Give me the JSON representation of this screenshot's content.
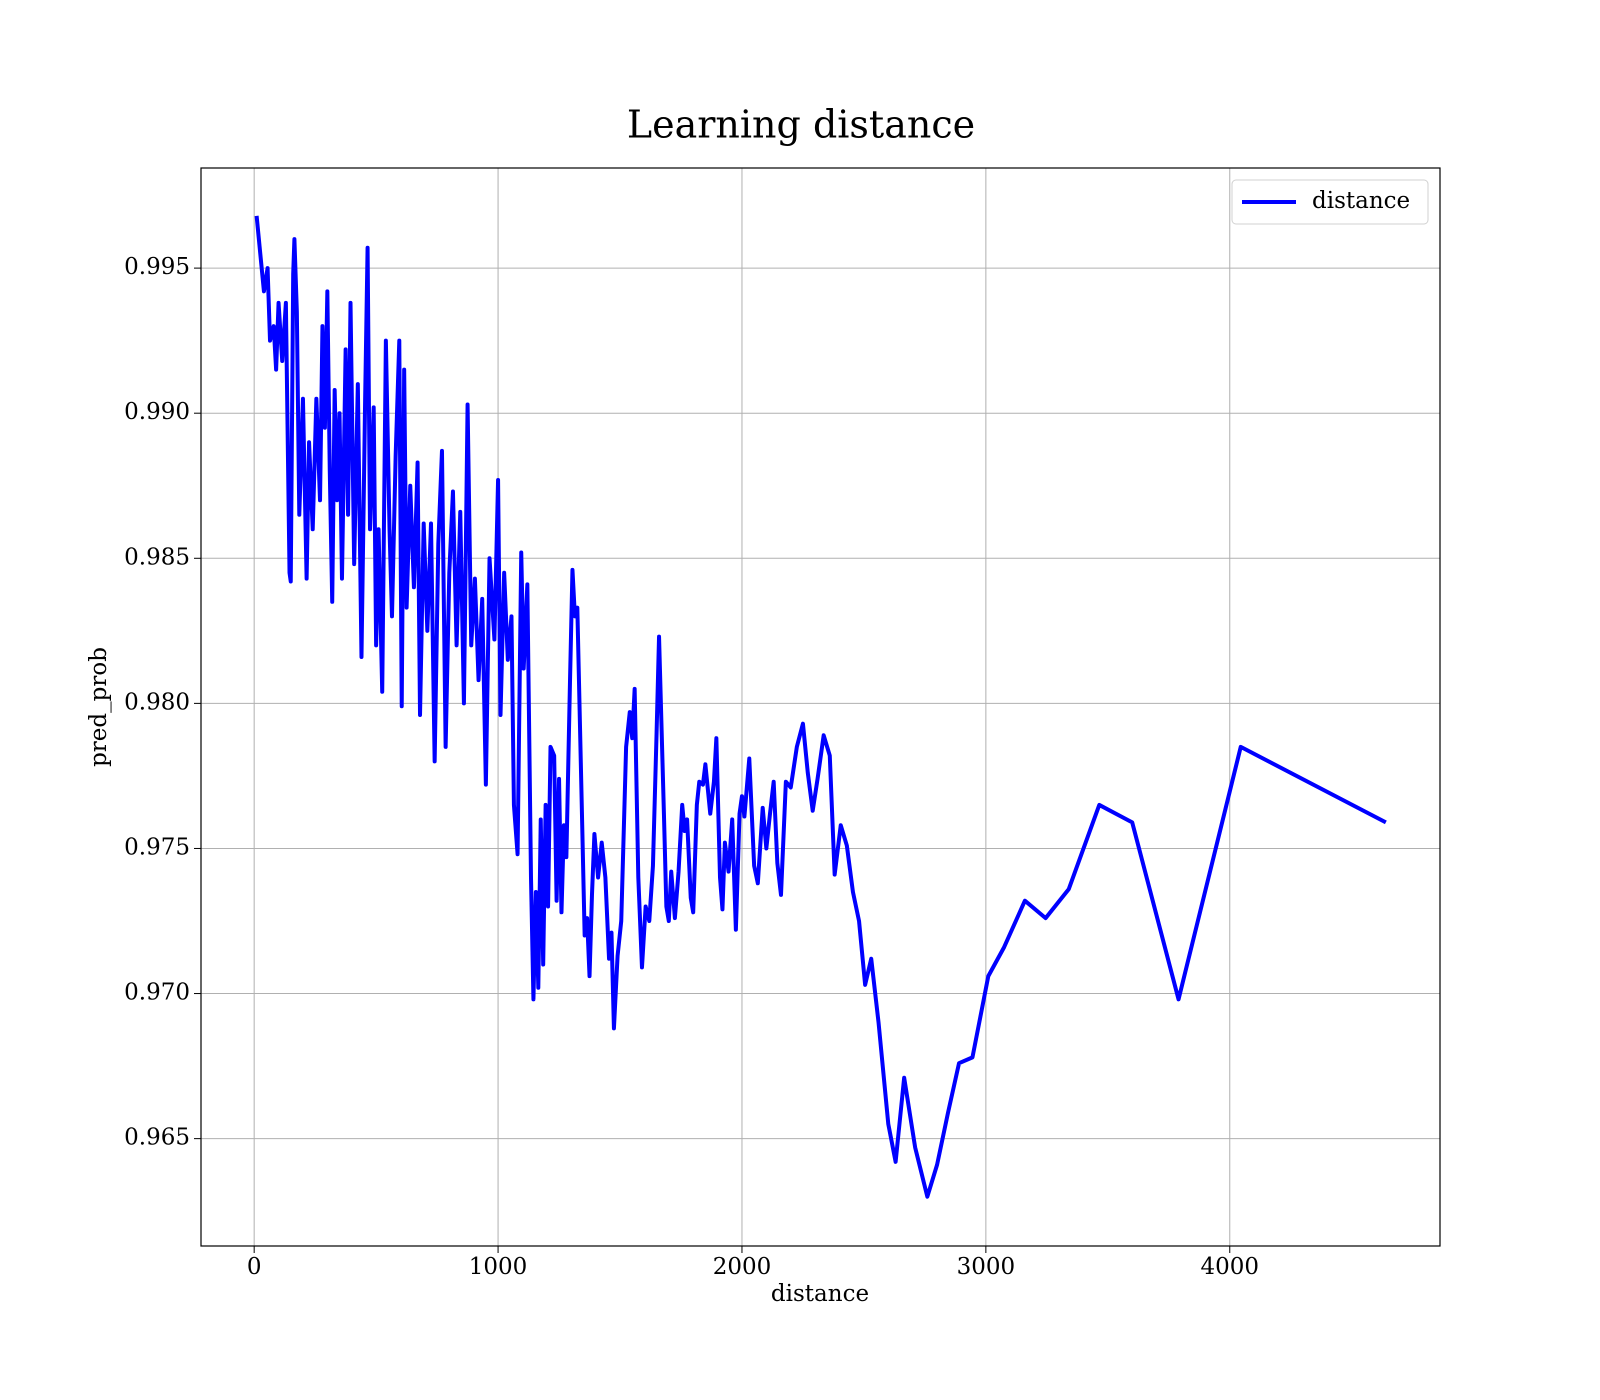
{
  "chart_data": {
    "type": "line",
    "title": "Learning distance",
    "xlabel": "distance",
    "ylabel": "pred_prob",
    "xlim": [
      -218,
      4862
    ],
    "ylim": [
      0.9613,
      0.99845
    ],
    "xticks": [
      0,
      1000,
      2000,
      3000,
      4000
    ],
    "yticks": [
      0.965,
      {
        "value": 0.97,
        "label": "0.970"
      },
      0.975,
      {
        "value": 0.98,
        "label": "0.980"
      },
      0.985,
      {
        "value": 0.99,
        "label": "0.990"
      },
      0.995
    ],
    "grid": true,
    "legend": "upper right",
    "x": [
      10,
      40,
      55,
      65,
      80,
      90,
      100,
      115,
      130,
      145,
      150,
      160,
      165,
      175,
      185,
      200,
      215,
      225,
      240,
      255,
      270,
      280,
      290,
      300,
      310,
      320,
      330,
      340,
      350,
      360,
      375,
      385,
      395,
      410,
      425,
      440,
      455,
      465,
      475,
      490,
      500,
      510,
      525,
      540,
      555,
      565,
      580,
      595,
      605,
      615,
      625,
      640,
      655,
      670,
      680,
      695,
      710,
      725,
      740,
      755,
      770,
      785,
      800,
      815,
      830,
      845,
      860,
      875,
      890,
      905,
      920,
      935,
      950,
      965,
      985,
      1000,
      1010,
      1025,
      1040,
      1055,
      1065,
      1080,
      1095,
      1105,
      1120,
      1135,
      1145,
      1155,
      1165,
      1175,
      1185,
      1195,
      1205,
      1215,
      1230,
      1240,
      1250,
      1260,
      1270,
      1280,
      1295,
      1305,
      1315,
      1325,
      1345,
      1355,
      1365,
      1375,
      1385,
      1395,
      1410,
      1425,
      1440,
      1455,
      1465,
      1475,
      1490,
      1505,
      1525,
      1540,
      1550,
      1560,
      1575,
      1590,
      1605,
      1620,
      1635,
      1650,
      1660,
      1680,
      1690,
      1700,
      1710,
      1725,
      1740,
      1755,
      1765,
      1775,
      1790,
      1800,
      1815,
      1825,
      1840,
      1850,
      1870,
      1885,
      1895,
      1910,
      1920,
      1930,
      1945,
      1960,
      1975,
      1990,
      2000,
      2010,
      2030,
      2050,
      2065,
      2085,
      2100,
      2115,
      2130,
      2145,
      2160,
      2180,
      2200,
      2225,
      2250,
      2270,
      2290,
      2310,
      2335,
      2360,
      2380,
      2405,
      2430,
      2455,
      2480,
      2505,
      2530,
      2560,
      2600,
      2630,
      2665,
      2710,
      2760,
      2800,
      2845,
      2890,
      2945,
      3010,
      3075,
      3160,
      3245,
      3340,
      3465,
      3600,
      3790,
      4045,
      4640
    ],
    "series": [
      {
        "name": "distance",
        "color": "#0000ff",
        "values": [
          0.9968,
          0.9942,
          0.995,
          0.9925,
          0.993,
          0.9915,
          0.9938,
          0.9918,
          0.9938,
          0.9845,
          0.9842,
          0.9948,
          0.996,
          0.9935,
          0.9865,
          0.9905,
          0.9843,
          0.989,
          0.986,
          0.9905,
          0.987,
          0.993,
          0.9895,
          0.9942,
          0.988,
          0.9835,
          0.9908,
          0.987,
          0.99,
          0.9843,
          0.9922,
          0.9865,
          0.9938,
          0.9848,
          0.991,
          0.9816,
          0.9905,
          0.9957,
          0.986,
          0.9902,
          0.982,
          0.986,
          0.9804,
          0.9925,
          0.986,
          0.983,
          0.9885,
          0.9925,
          0.9799,
          0.9915,
          0.9833,
          0.9875,
          0.984,
          0.9883,
          0.9796,
          0.9862,
          0.9825,
          0.9862,
          0.978,
          0.9855,
          0.9887,
          0.9785,
          0.9845,
          0.9873,
          0.982,
          0.9866,
          0.98,
          0.9903,
          0.982,
          0.9843,
          0.9808,
          0.9836,
          0.9772,
          0.985,
          0.9822,
          0.9877,
          0.9796,
          0.9845,
          0.9815,
          0.983,
          0.9765,
          0.9748,
          0.9852,
          0.9812,
          0.9841,
          0.974,
          0.9698,
          0.9735,
          0.9702,
          0.976,
          0.971,
          0.9765,
          0.973,
          0.9785,
          0.9782,
          0.9732,
          0.9774,
          0.9728,
          0.9758,
          0.9747,
          0.9808,
          0.9846,
          0.983,
          0.9833,
          0.9758,
          0.972,
          0.9726,
          0.9706,
          0.9734,
          0.9755,
          0.974,
          0.9752,
          0.974,
          0.9712,
          0.9721,
          0.9688,
          0.9713,
          0.9725,
          0.9785,
          0.9797,
          0.9788,
          0.9805,
          0.974,
          0.9709,
          0.973,
          0.9725,
          0.9744,
          0.979,
          0.9823,
          0.9762,
          0.973,
          0.9725,
          0.9742,
          0.9726,
          0.9742,
          0.9765,
          0.9756,
          0.976,
          0.9733,
          0.9728,
          0.9765,
          0.9773,
          0.9772,
          0.9779,
          0.9762,
          0.9773,
          0.9788,
          0.974,
          0.9729,
          0.9752,
          0.9742,
          0.976,
          0.9722,
          0.9762,
          0.9768,
          0.9761,
          0.9781,
          0.9744,
          0.9738,
          0.9764,
          0.975,
          0.9762,
          0.9773,
          0.9745,
          0.9734,
          0.9773,
          0.9771,
          0.9785,
          0.9793,
          0.9776,
          0.9763,
          0.9774,
          0.9789,
          0.9782,
          0.9741,
          0.9758,
          0.9751,
          0.9735,
          0.9725,
          0.9703,
          0.9712,
          0.969,
          0.9655,
          0.9642,
          0.9671,
          0.9647,
          0.963,
          0.9641,
          0.9659,
          0.9676,
          0.9678,
          0.9706,
          0.9716,
          0.9732,
          0.9726,
          0.9736,
          0.9765,
          0.9759,
          0.9698,
          0.9785,
          0.9759
        ]
      }
    ]
  }
}
